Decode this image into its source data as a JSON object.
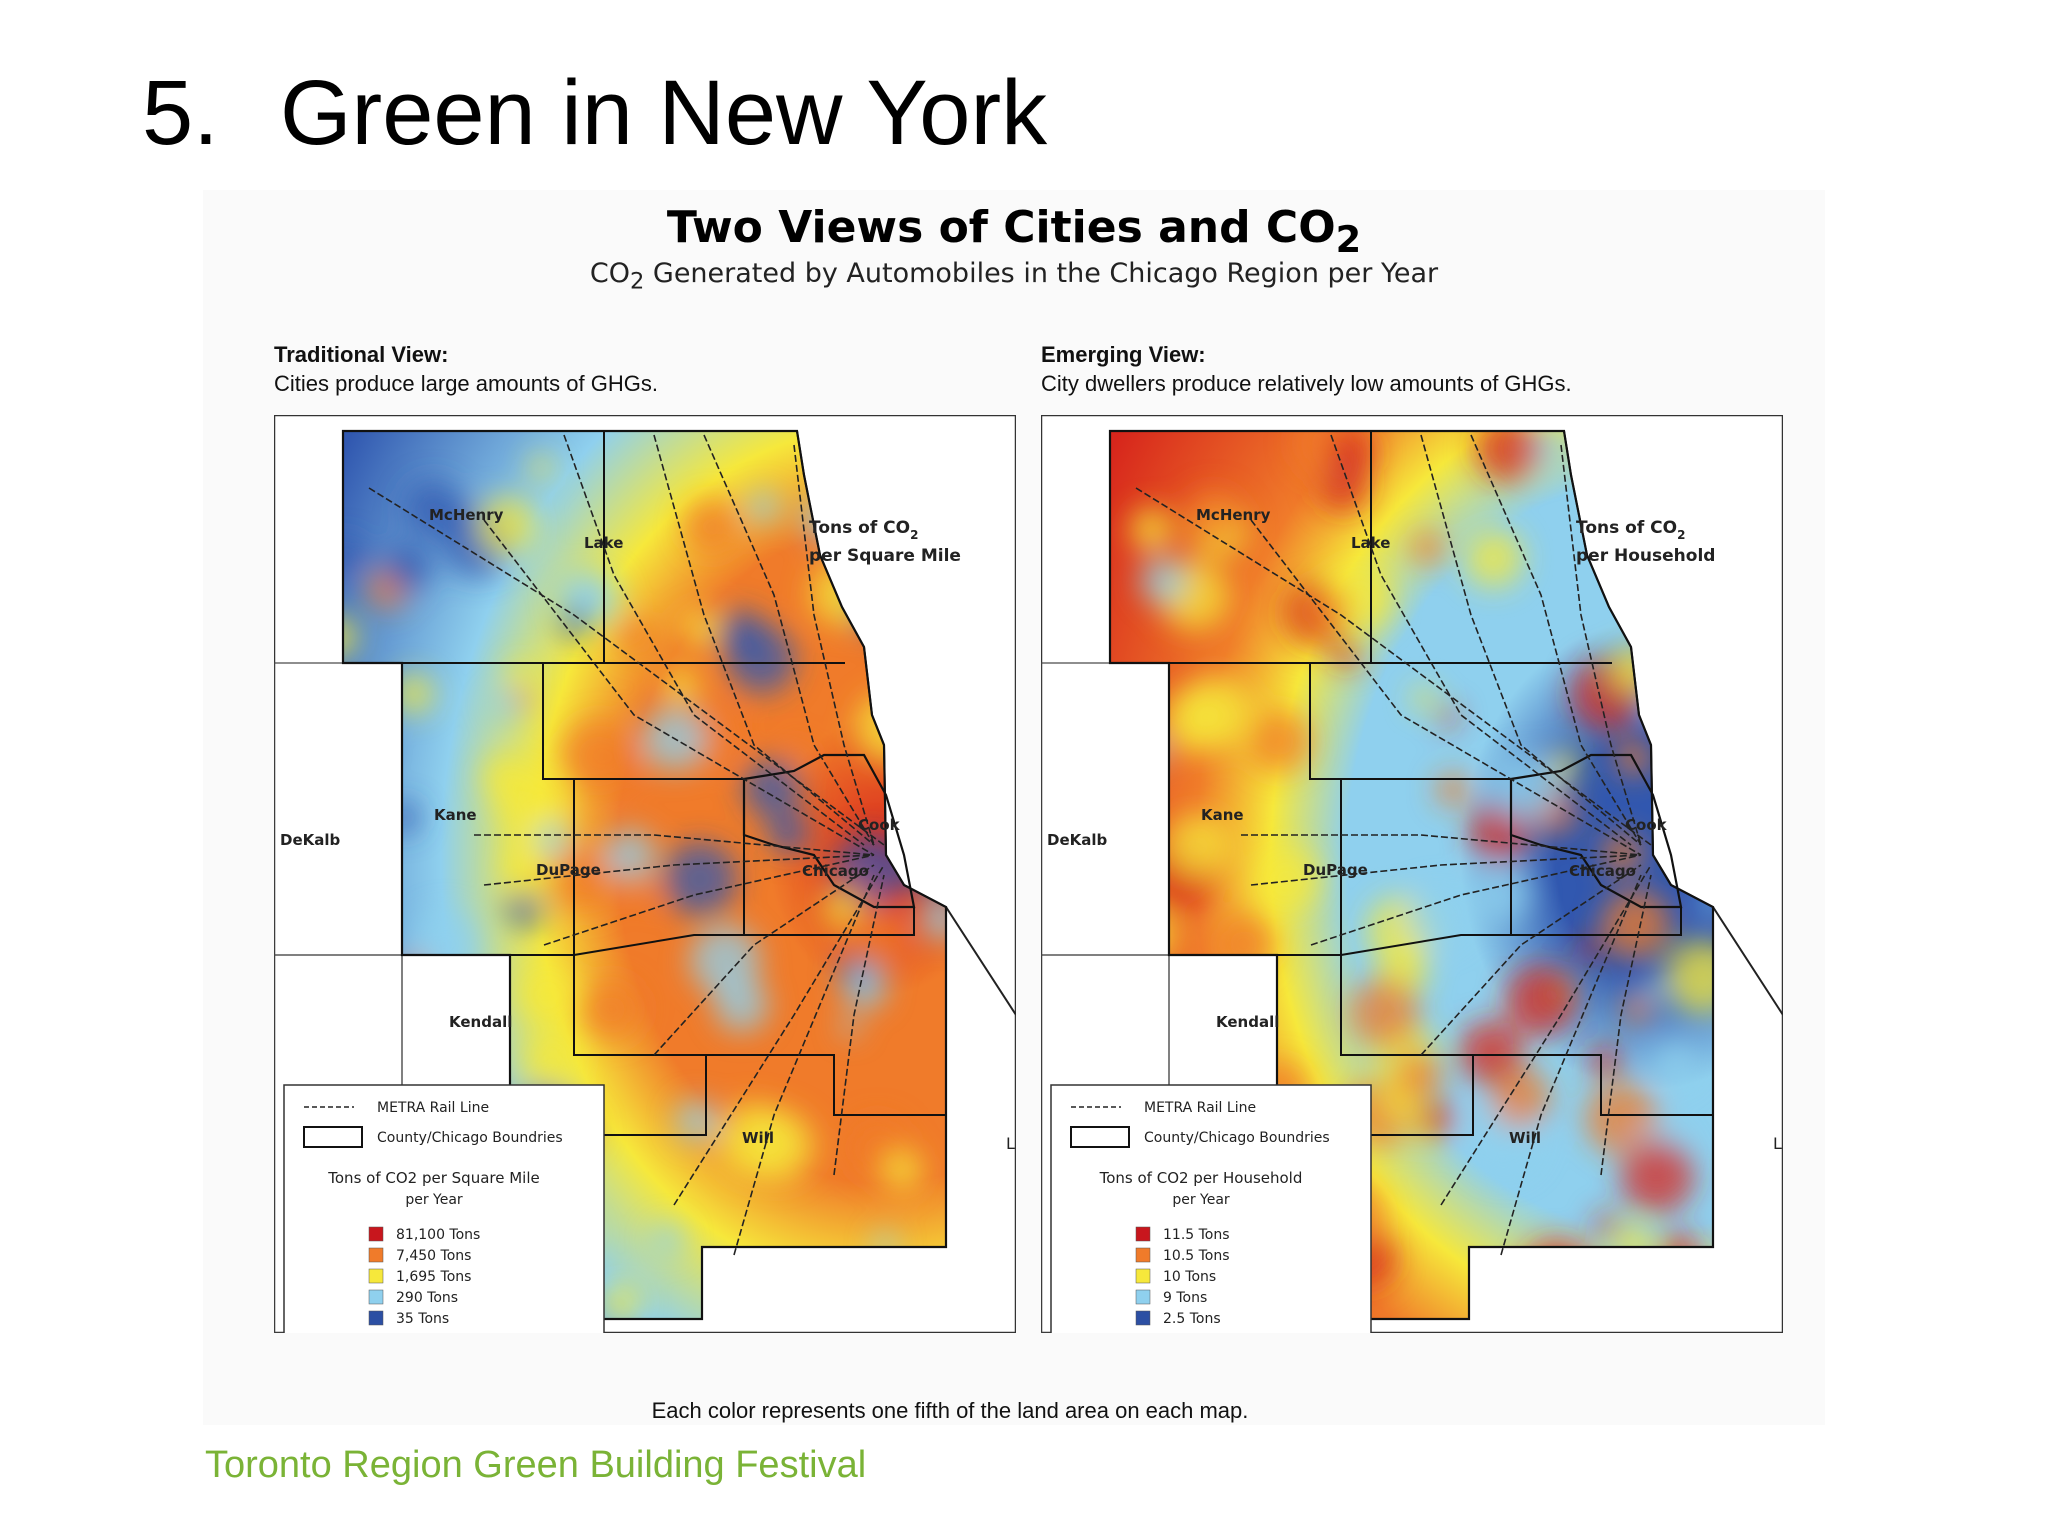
{
  "slide": {
    "number": "5.",
    "title": "Green in New York",
    "footer": "Toronto Region Green Building Festival"
  },
  "figure": {
    "title": "Two Views of Cities and CO",
    "title_subscript": "2",
    "subtitle_pre": "CO",
    "subtitle_subscript": "2",
    "subtitle_post": " Generated by Automobiles in the Chicago Region per Year",
    "caption": "Each color represents one fifth of the land area on each map."
  },
  "maps": [
    {
      "heading": "Traditional View:",
      "description": "Cities produce large amounts of GHGs.",
      "map_title_line1": "Tons of CO",
      "map_title_sub": "2",
      "map_title_line2": "per Square Mile",
      "counties": [
        "McHenry",
        "Lake",
        "Kane",
        "DeKalb",
        "DuPage",
        "Cook",
        "Chicago",
        "Kendall",
        "Will"
      ],
      "legend": {
        "rail": "METRA Rail Line",
        "boundaries": "County/Chicago Boundries",
        "scale_title": "Tons of CO2 per Square Mile",
        "scale_unit": "per Year",
        "entries": [
          {
            "label": "81,100 Tons",
            "color": "#c8161d"
          },
          {
            "label": "7,450 Tons",
            "color": "#f07b2a"
          },
          {
            "label": "1,695 Tons",
            "color": "#f6e83b"
          },
          {
            "label": "290 Tons",
            "color": "#8fd0ee"
          },
          {
            "label": "35 Tons",
            "color": "#2c4fa3"
          }
        ]
      },
      "edge_mark": "L"
    },
    {
      "heading": "Emerging View:",
      "description": "City dwellers produce relatively low amounts of GHGs.",
      "map_title_line1": "Tons of CO",
      "map_title_sub": "2",
      "map_title_line2": "per Household",
      "counties": [
        "McHenry",
        "Lake",
        "Kane",
        "DeKalb",
        "DuPage",
        "Cook",
        "Chicago",
        "Kendall",
        "Will"
      ],
      "legend": {
        "rail": "METRA Rail Line",
        "boundaries": "County/Chicago Boundries",
        "scale_title": "Tons of CO2 per Household",
        "scale_unit": "per Year",
        "entries": [
          {
            "label": "11.5 Tons",
            "color": "#c8161d"
          },
          {
            "label": "10.5 Tons",
            "color": "#f07b2a"
          },
          {
            "label": "10   Tons",
            "color": "#f6e83b"
          },
          {
            "label": "9   Tons",
            "color": "#8fd0ee"
          },
          {
            "label": "2.5 Tons",
            "color": "#2c4fa3"
          }
        ]
      },
      "edge_mark": "L"
    }
  ],
  "colors": {
    "high": "#d7261c",
    "upper": "#f07b2a",
    "mid": "#f6e83b",
    "lower": "#8fd0ee",
    "low": "#3158b0",
    "footer": "#7ab336"
  }
}
